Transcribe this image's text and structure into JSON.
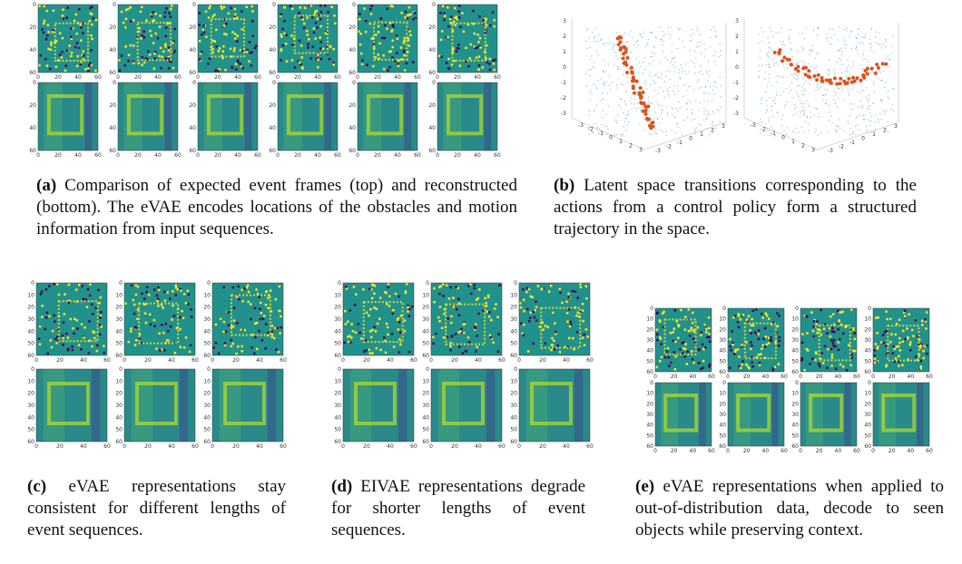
{
  "figure": {
    "subfigures": [
      {
        "label": "(a)",
        "caption": "Comparison of expected event frames (top) and reconstructed (bottom). The eVAE encodes locations of the obstacles and motion information from input sequences."
      },
      {
        "label": "(b)",
        "caption": "Latent space transitions corresponding to the actions from a control policy form a structured trajectory in the space."
      },
      {
        "label": "(c)",
        "caption": "eVAE representations stay consistent for different lengths of event sequences."
      },
      {
        "label": "(d)",
        "caption": "EIVAE representations degrade for shorter lengths of event sequences."
      },
      {
        "label": "(e)",
        "caption": "eVAE representations when applied to out-of-distribution data, decode to seen objects while preserving context."
      }
    ],
    "axes": {
      "xticks": [
        "0",
        "20",
        "40",
        "60"
      ],
      "yticks_coarse": [
        "0",
        "20",
        "40",
        "60"
      ],
      "yticks_fine": [
        "0",
        "10",
        "20",
        "30",
        "40",
        "50",
        "60"
      ],
      "ticks_3d": [
        "-3",
        "-2",
        "-1",
        "0",
        "1",
        "2",
        "3"
      ]
    }
  }
}
